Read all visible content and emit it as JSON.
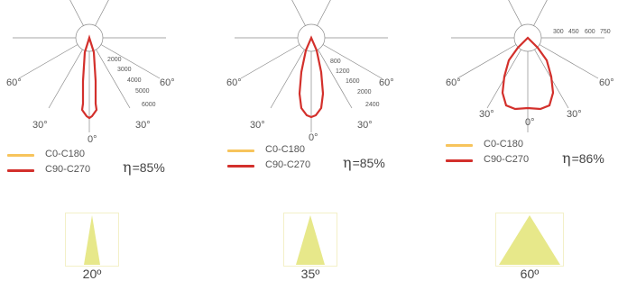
{
  "colors": {
    "c0_c180": "#f7c45c",
    "c90_c270": "#d3302c",
    "beam_fill": "#e7e88a",
    "grid": "#8a8a8a"
  },
  "panels": [
    {
      "angle_labels": {
        "left60": "60°",
        "right60": "60°",
        "left30": "30°",
        "right30": "30°",
        "bottom0": "0°"
      },
      "scale_labels": [
        "2000",
        "3000",
        "4000",
        "5000",
        "6000"
      ],
      "legend": {
        "c0": "C0-C180",
        "c90": "C90-C270"
      },
      "efficiency": {
        "symbol": "η",
        "value": "=85%"
      },
      "beam_label": "20º",
      "beam_angle_deg": 20
    },
    {
      "angle_labels": {
        "left60": "60°",
        "right60": "60°",
        "left30": "30°",
        "right30": "30°",
        "bottom0": "0°"
      },
      "scale_labels": [
        "800",
        "1200",
        "1600",
        "2000",
        "2400"
      ],
      "legend": {
        "c0": "C0-C180",
        "c90": "C90-C270"
      },
      "efficiency": {
        "symbol": "η",
        "value": "=85%"
      },
      "beam_label": "35º",
      "beam_angle_deg": 35
    },
    {
      "angle_labels": {
        "left60": "60°",
        "right60": "60°",
        "left30": "30°",
        "right30": "30°",
        "bottom0": "0°"
      },
      "scale_labels": [
        "300",
        "450",
        "600",
        "750"
      ],
      "legend": {
        "c0": "C0-C180",
        "c90": "C90-C270"
      },
      "efficiency": {
        "symbol": "η",
        "value": "=86%"
      },
      "beam_label": "60º",
      "beam_angle_deg": 60
    }
  ]
}
